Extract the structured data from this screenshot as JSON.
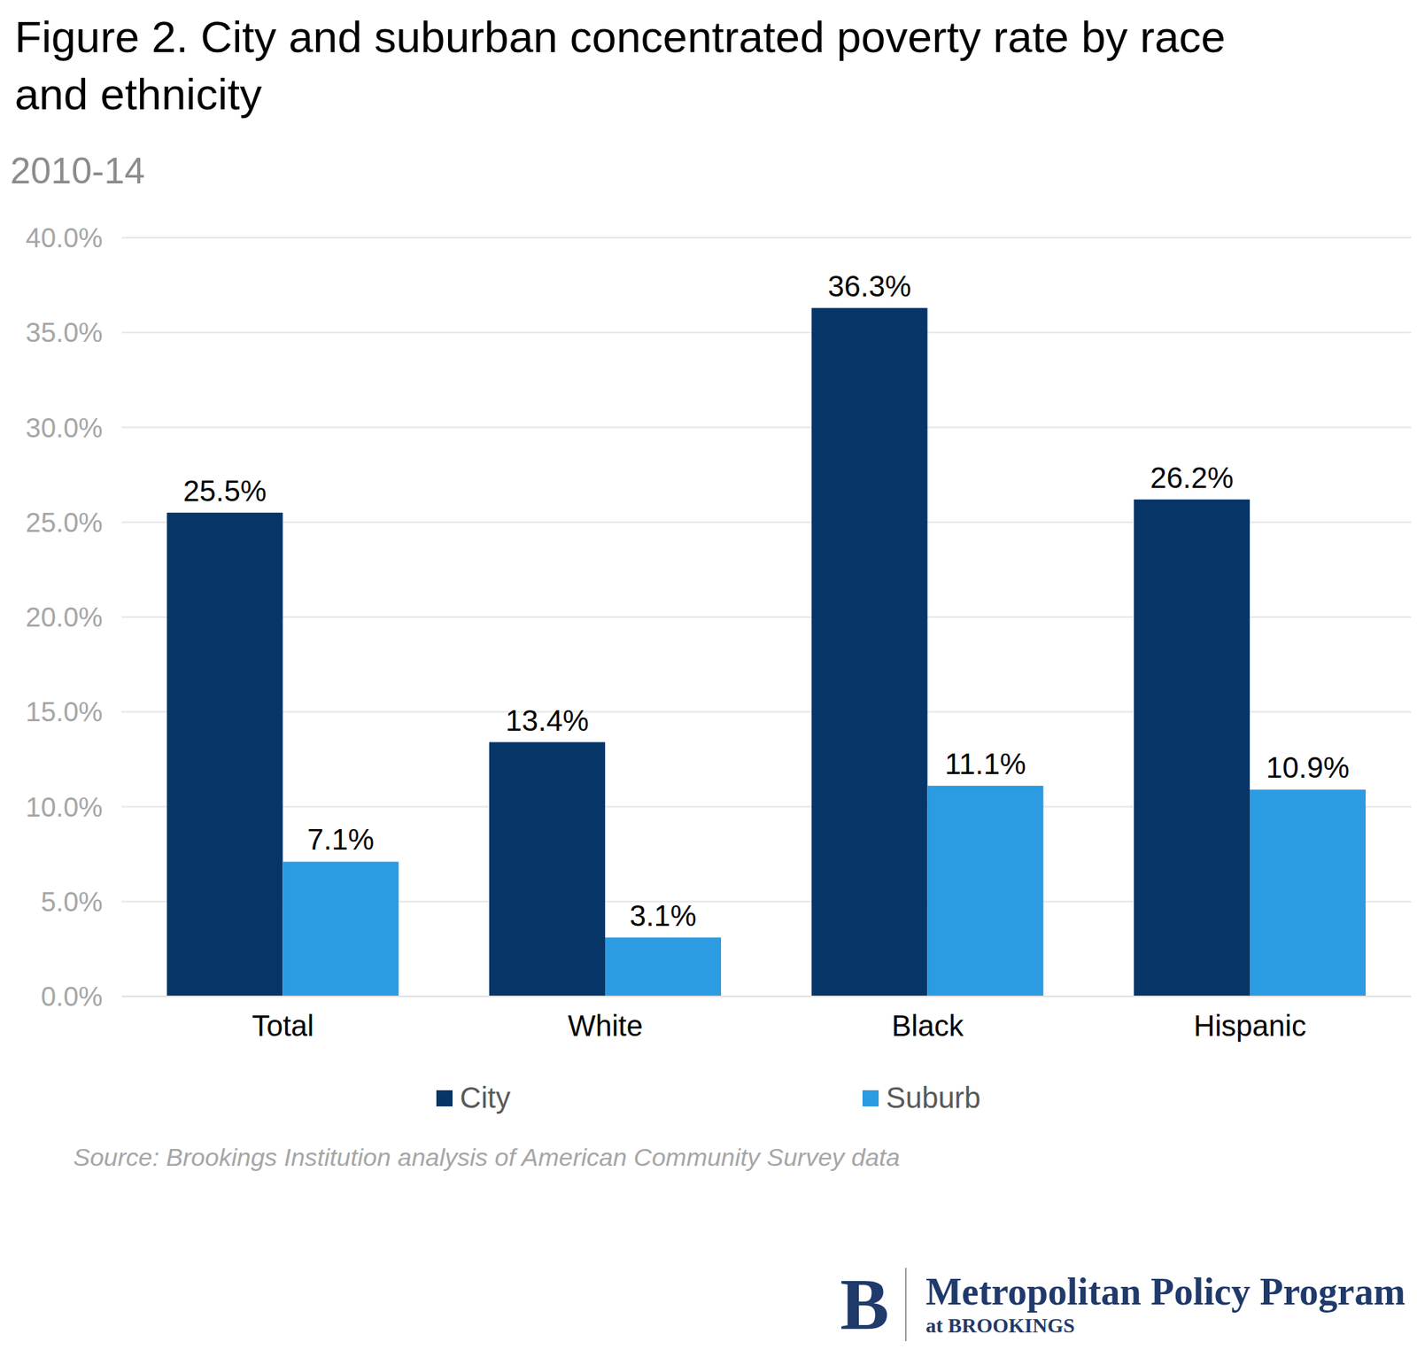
{
  "chart_data": {
    "type": "bar",
    "title": "Figure 2. City and suburban concentrated poverty rate by race and ethnicity",
    "subtitle": "2010-14",
    "categories": [
      "Total",
      "White",
      "Black",
      "Hispanic"
    ],
    "series": [
      {
        "name": "City",
        "color": "#063567",
        "values": [
          25.5,
          13.4,
          36.3,
          26.2
        ],
        "value_labels": [
          "25.5%",
          "13.4%",
          "36.3%",
          "26.2%"
        ]
      },
      {
        "name": "Suburb",
        "color": "#2b9be2",
        "values": [
          7.1,
          3.1,
          11.1,
          10.9
        ],
        "value_labels": [
          "7.1%",
          "3.1%",
          "11.1%",
          "10.9%"
        ]
      }
    ],
    "ylim": [
      0,
      40
    ],
    "yticks": [
      {
        "value": 0,
        "label": "0.0%"
      },
      {
        "value": 5,
        "label": "5.0%"
      },
      {
        "value": 10,
        "label": "10.0%"
      },
      {
        "value": 15,
        "label": "15.0%"
      },
      {
        "value": 20,
        "label": "20.0%"
      },
      {
        "value": 25,
        "label": "25.0%"
      },
      {
        "value": 30,
        "label": "30.0%"
      },
      {
        "value": 35,
        "label": "35.0%"
      },
      {
        "value": 40,
        "label": "40.0%"
      }
    ],
    "grid": true,
    "data_labels": true,
    "legend": "bottom",
    "source": "Source: Brookings Institution analysis of American Community Survey data",
    "logo": {
      "mark": "B",
      "name": "Metropolitan Policy Program",
      "sub": "at BROOKINGS"
    }
  }
}
